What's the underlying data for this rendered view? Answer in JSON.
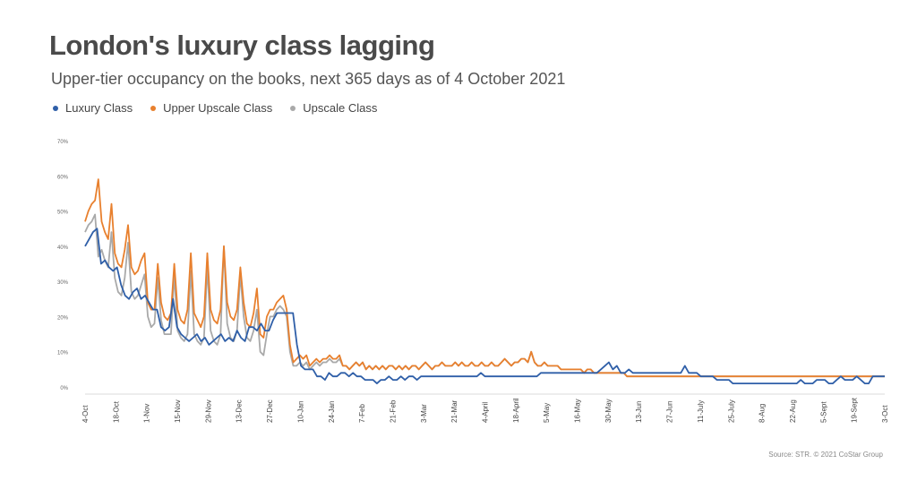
{
  "title": "London's luxury class lagging",
  "subtitle": "Upper-tier occupancy on the books, next 365 days as of 4 October 2021",
  "source": "Source: STR. © 2021 CoStar Group",
  "colors": {
    "luxury": "#2f5fa8",
    "upper_upscale": "#e8802e",
    "upscale": "#a9a9a9"
  },
  "chart_data": {
    "type": "line",
    "title": "London's luxury class lagging",
    "subtitle": "Upper-tier occupancy on the books, next 365 days as of 4 October 2021",
    "xlabel": "",
    "ylabel": "",
    "ylim": [
      0,
      70
    ],
    "yticks": [
      "0%",
      "10%",
      "20%",
      "30%",
      "40%",
      "50%",
      "60%",
      "70%"
    ],
    "xticks": [
      "4-Oct",
      "18-Oct",
      "1-Nov",
      "15-Nov",
      "29-Nov",
      "13-Dec",
      "27-Dec",
      "10-Jan",
      "24-Jan",
      "7-Feb",
      "21-Feb",
      "3-Mar",
      "21-Mar",
      "4-April",
      "18-April",
      "5-May",
      "16-May",
      "30-May",
      "13-Jun",
      "27-Jun",
      "11-July",
      "25-July",
      "8-Aug",
      "22-Aug",
      "5-Sept",
      "19-Sept",
      "3-Oct"
    ],
    "legend_position": "top-left",
    "grid": false,
    "series": [
      {
        "name": "Luxury Class",
        "color": "#2f5fa8",
        "values": [
          40,
          42,
          44,
          45,
          35,
          36,
          34,
          33,
          34,
          29,
          26,
          25,
          27,
          28,
          25,
          26,
          24,
          22,
          22,
          17,
          16,
          17,
          25,
          17,
          15,
          14,
          13,
          14,
          15,
          13,
          14,
          12,
          13,
          14,
          15,
          13,
          14,
          13,
          16,
          14,
          13,
          17,
          17,
          16,
          18,
          16,
          16,
          19,
          21,
          21,
          21,
          21,
          21,
          12,
          6,
          5,
          5,
          5,
          3,
          3,
          2,
          4,
          3,
          3,
          4,
          4,
          3,
          4,
          3,
          3,
          2,
          2,
          2,
          1,
          2,
          2,
          3,
          2,
          2,
          3,
          2,
          3,
          3,
          2,
          3,
          3,
          3,
          3,
          3,
          3,
          3,
          3,
          3,
          3,
          3,
          3,
          3,
          3,
          3,
          4,
          3,
          3,
          3,
          3,
          3,
          3,
          3,
          3,
          3,
          3,
          3,
          3,
          3,
          3,
          4,
          4,
          4,
          4,
          4,
          4,
          4,
          4,
          4,
          4,
          4,
          4,
          4,
          4,
          4,
          5,
          6,
          7,
          5,
          6,
          4,
          4,
          5,
          4,
          4,
          4,
          4,
          4,
          4,
          4,
          4,
          4,
          4,
          4,
          4,
          4,
          6,
          4,
          4,
          4,
          3,
          3,
          3,
          3,
          2,
          2,
          2,
          2,
          1,
          1,
          1,
          1,
          1,
          1,
          1,
          1,
          1,
          1,
          1,
          1,
          1,
          1,
          1,
          1,
          1,
          2,
          1,
          1,
          1,
          2,
          2,
          2,
          1,
          1,
          2,
          3,
          2,
          2,
          2,
          3,
          2,
          1,
          1,
          3,
          3,
          3,
          3
        ]
      },
      {
        "name": "Upper Upscale Class",
        "color": "#e8802e",
        "values": [
          47,
          50,
          52,
          53,
          59,
          47,
          44,
          42,
          52,
          38,
          35,
          34,
          39,
          46,
          34,
          32,
          33,
          36,
          38,
          24,
          22,
          22,
          35,
          24,
          20,
          19,
          21,
          35,
          22,
          19,
          18,
          22,
          38,
          21,
          19,
          17,
          20,
          38,
          22,
          19,
          18,
          22,
          40,
          24,
          20,
          19,
          22,
          34,
          24,
          18,
          17,
          21,
          28,
          15,
          14,
          20,
          22,
          22,
          24,
          25,
          26,
          22,
          12,
          7,
          8,
          9,
          8,
          9,
          6,
          7,
          8,
          7,
          8,
          8,
          9,
          8,
          8,
          9,
          6,
          6,
          5,
          6,
          7,
          6,
          7,
          5,
          6,
          5,
          6,
          5,
          6,
          5,
          6,
          6,
          5,
          6,
          5,
          6,
          5,
          6,
          6,
          5,
          6,
          7,
          6,
          5,
          6,
          6,
          7,
          6,
          6,
          6,
          7,
          6,
          7,
          6,
          6,
          7,
          6,
          6,
          7,
          6,
          6,
          7,
          6,
          6,
          7,
          8,
          7,
          6,
          7,
          7,
          8,
          8,
          7,
          10,
          7,
          6,
          6,
          7,
          6,
          6,
          6,
          6,
          5,
          5,
          5,
          5,
          5,
          5,
          5,
          4,
          5,
          5,
          4,
          4,
          4,
          4,
          4,
          4,
          4,
          4,
          4,
          4,
          3,
          3,
          3,
          3,
          3,
          3,
          3,
          3,
          3,
          3,
          3,
          3,
          3,
          3,
          3,
          3,
          3,
          3,
          3,
          3,
          3,
          3,
          3,
          3,
          3,
          3,
          3,
          3,
          3,
          3,
          3,
          3,
          3,
          3,
          3,
          3,
          3,
          3,
          3,
          3,
          3,
          3,
          3,
          3,
          3,
          3,
          3,
          3,
          3,
          3,
          3,
          3,
          3,
          3,
          3,
          3,
          3,
          3,
          3,
          3,
          3,
          3,
          3,
          3,
          3,
          3,
          3,
          3,
          3,
          3,
          3,
          3,
          3,
          3,
          3,
          3,
          3,
          3,
          3
        ]
      },
      {
        "name": "Upscale Class",
        "color": "#a9a9a9",
        "values": [
          44,
          46,
          47,
          49,
          37,
          39,
          36,
          34,
          44,
          31,
          27,
          26,
          31,
          41,
          27,
          25,
          26,
          29,
          32,
          20,
          17,
          18,
          31,
          19,
          15,
          15,
          15,
          32,
          16,
          14,
          13,
          15,
          33,
          15,
          13,
          12,
          14,
          34,
          16,
          13,
          12,
          15,
          40,
          18,
          14,
          13,
          16,
          32,
          20,
          14,
          13,
          16,
          22,
          10,
          9,
          15,
          20,
          20,
          22,
          23,
          22,
          20,
          10,
          6,
          6,
          7,
          6,
          7,
          5,
          6,
          7,
          6,
          7,
          7,
          8,
          7,
          7,
          8,
          6,
          6,
          5,
          6,
          7,
          6,
          7,
          5,
          6,
          5,
          6,
          5,
          6,
          5,
          6,
          6,
          5,
          6,
          5,
          6,
          5,
          6,
          6,
          5,
          6,
          7,
          6,
          5,
          6,
          6,
          7,
          6,
          6,
          6,
          7,
          6,
          7,
          6,
          6,
          7,
          6,
          6,
          7,
          6,
          6,
          7,
          6,
          6,
          7,
          8,
          7,
          6,
          7,
          7,
          8,
          8,
          7,
          10,
          7,
          6,
          6,
          7,
          6,
          6,
          6,
          6,
          5,
          5,
          5,
          5,
          5,
          5,
          5,
          4,
          5,
          5,
          4,
          4,
          4,
          4,
          4,
          4,
          4,
          4,
          4,
          4,
          3,
          3,
          3,
          3,
          3,
          3,
          3,
          3,
          3,
          3,
          3,
          3,
          3,
          3,
          3,
          3,
          3,
          3,
          3,
          3,
          3,
          3,
          3,
          3,
          3,
          3,
          3,
          3,
          3,
          3,
          3,
          3,
          3,
          3,
          3,
          3,
          3,
          3,
          3,
          3,
          3,
          3,
          3,
          3,
          3,
          3,
          3,
          3,
          3,
          3,
          3,
          3,
          3,
          3,
          3,
          3,
          3,
          3,
          3,
          3,
          3,
          3,
          3,
          3,
          3,
          3,
          3,
          3,
          3,
          3,
          3,
          3,
          3,
          3,
          3,
          3,
          3,
          3,
          3
        ]
      }
    ]
  }
}
